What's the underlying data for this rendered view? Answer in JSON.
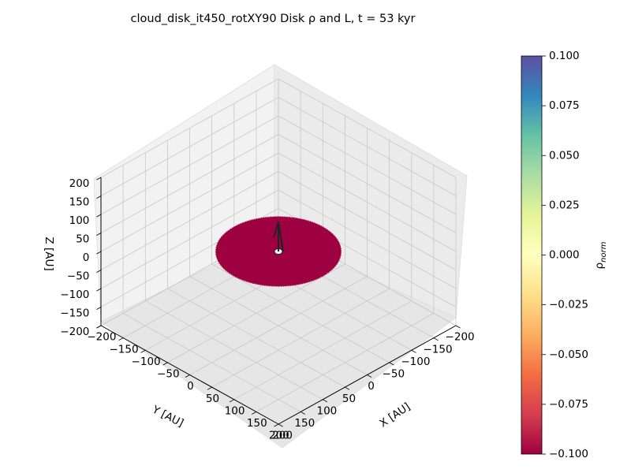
{
  "chart_data": [
    {
      "type": "scatter",
      "title": "cloud_disk_it450_rotXY90 Disk ρ and L, t = 53 kyr",
      "projection": "3d",
      "xlabel": "X [AU]",
      "ylabel": "Y [AU]",
      "zlabel": "Z [AU]",
      "xlim": [
        -200,
        200
      ],
      "ylim": [
        -200,
        200
      ],
      "zlim": [
        -200,
        200
      ],
      "xticks": [
        "−200",
        "−150",
        "−100",
        "−50",
        "0",
        "50",
        "100",
        "150",
        "200"
      ],
      "yticks": [
        "−200",
        "−150",
        "−100",
        "−50",
        "0",
        "50",
        "100",
        "150",
        "200"
      ],
      "zticks": [
        "−200",
        "−150",
        "−100",
        "−50",
        "0",
        "50",
        "100",
        "150",
        "200"
      ],
      "grid": true,
      "disk": {
        "radius_au": 100,
        "z_au": 0,
        "color": "#9e0142"
      },
      "angular_momentum_vector": {
        "x": 0,
        "y": 0,
        "z": 80,
        "color": "#222222"
      },
      "colorbar": {
        "label": "ρnorm",
        "label_main": "ρ",
        "label_sub": "norm",
        "colormap": "Spectral",
        "range": [
          -0.1,
          0.1
        ],
        "ticks": [
          "0.100",
          "0.075",
          "0.050",
          "0.025",
          "0.000",
          "−0.025",
          "−0.050",
          "−0.075",
          "−0.100"
        ]
      }
    }
  ]
}
